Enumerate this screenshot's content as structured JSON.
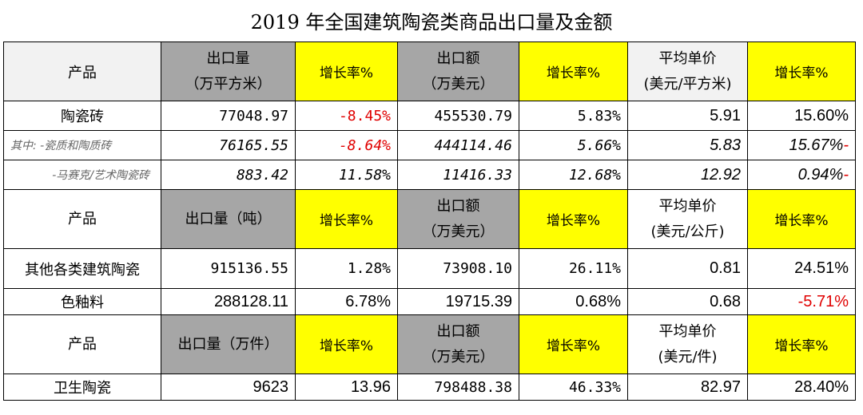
{
  "title": "2019 年全国建筑陶瓷类商品出口量及金额",
  "header1": {
    "product": "产品",
    "qty_l1": "出口量",
    "qty_l2": "（万平方米）",
    "growth": "增长率%",
    "amt_l1": "出口额",
    "amt_l2": "（万美元）",
    "price_l1": "平均单价",
    "price_l2": "(美元/平方米)"
  },
  "rows1": [
    {
      "name": "陶瓷砖",
      "qty": "77048.97",
      "qty_g": "-8.45%",
      "amt": "455530.79",
      "amt_g": "5.83%",
      "price": "5.91",
      "price_g": "15.60%",
      "price_g_suffix": ""
    },
    {
      "name": "其中: -瓷质和陶质砖",
      "qty": "76165.55",
      "qty_g": "-8.64%",
      "amt": "444114.46",
      "amt_g": "5.66%",
      "price": "5.83",
      "price_g": "15.67%",
      "price_g_suffix": "-"
    },
    {
      "name": "-马赛克/艺术陶瓷砖",
      "qty": "883.42",
      "qty_g": "11.58%",
      "amt": "11416.33",
      "amt_g": "12.68%",
      "price": "12.92",
      "price_g": "0.94%",
      "price_g_suffix": "-"
    }
  ],
  "header2": {
    "product": "产品",
    "qty": "出口量（吨）",
    "growth": "增长率%",
    "amt_l1": "出口额",
    "amt_l2": "（万美元）",
    "price_l1": "平均单价",
    "price_l2": "(美元/公斤)"
  },
  "rows2": [
    {
      "name": "其他各类建筑陶瓷",
      "qty": "915136.55",
      "qty_g": "1.28%",
      "amt": "73908.10",
      "amt_g": "26.11%",
      "price": "0.81",
      "price_g": "24.51%"
    },
    {
      "name": "色釉料",
      "qty": "288128.11",
      "qty_g": "6.78%",
      "amt": "19715.39",
      "amt_g": "0.68%",
      "price": "0.68",
      "price_g": "-5.71%"
    }
  ],
  "header3": {
    "product": "产品",
    "qty": "出口量（万件）",
    "growth": "增长率%",
    "amt_l1": "出口额",
    "amt_l2": "（万美元）",
    "price_l1": "平均单价",
    "price_l2": "(美元/件)"
  },
  "rows3": [
    {
      "name": "卫生陶瓷",
      "qty": "9623",
      "qty_g": "13.96",
      "amt": "798488.38",
      "amt_g": "46.33%",
      "price": "82.97",
      "price_g": "28.40%"
    }
  ]
}
